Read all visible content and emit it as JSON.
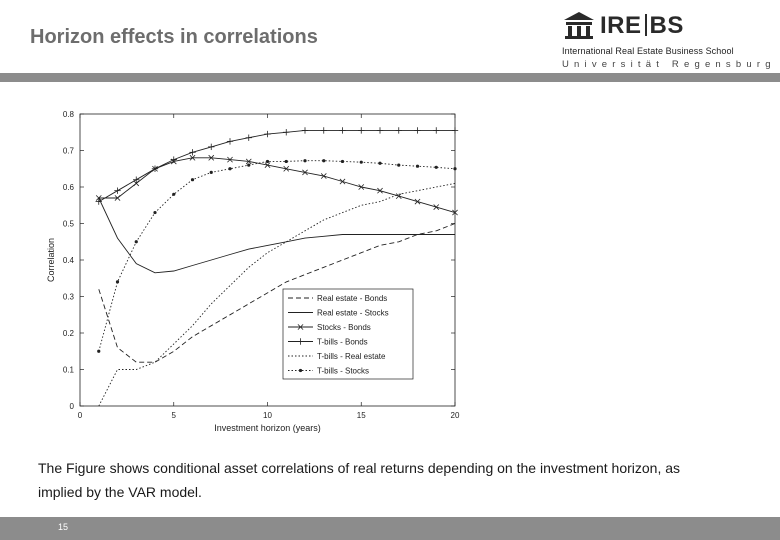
{
  "slide": {
    "title": "Horizon effects in correlations",
    "caption": "The Figure shows conditional asset correlations of real returns depending on the investment horizon, as implied by the VAR model.",
    "page_number": "15"
  },
  "logo": {
    "name_left": "IRE",
    "name_right": "BS",
    "subtitle": "International Real Estate Business School",
    "university": "Universität Regensburg"
  },
  "colors": {
    "bar": "#8c8c8c",
    "title": "#6d6d6d",
    "ink": "#1a1a1a"
  },
  "chart_data": {
    "type": "line",
    "title": "",
    "xlabel": "Investment horizon (years)",
    "ylabel": "Correlation",
    "xlim": [
      0,
      20
    ],
    "ylim": [
      0,
      0.8
    ],
    "xticks": [
      0,
      5,
      10,
      15,
      20
    ],
    "yticks": [
      0,
      0.1,
      0.2,
      0.3,
      0.4,
      0.5,
      0.6,
      0.7,
      0.8
    ],
    "legend_position": "bottom-right",
    "grid": false,
    "x": [
      1,
      2,
      3,
      4,
      5,
      6,
      7,
      8,
      9,
      10,
      11,
      12,
      13,
      14,
      15,
      16,
      17,
      18,
      19,
      20
    ],
    "series": [
      {
        "name": "Real estate - Bonds",
        "style": "dashed",
        "marker": "none",
        "values": [
          0.32,
          0.16,
          0.12,
          0.12,
          0.15,
          0.19,
          0.22,
          0.25,
          0.28,
          0.31,
          0.34,
          0.36,
          0.38,
          0.4,
          0.42,
          0.44,
          0.45,
          0.47,
          0.48,
          0.5
        ]
      },
      {
        "name": "Real estate - Stocks",
        "style": "solid",
        "marker": "none",
        "values": [
          0.57,
          0.46,
          0.39,
          0.365,
          0.37,
          0.385,
          0.4,
          0.415,
          0.43,
          0.44,
          0.45,
          0.46,
          0.465,
          0.47,
          0.47,
          0.47,
          0.47,
          0.47,
          0.47,
          0.47
        ]
      },
      {
        "name": "Stocks - Bonds",
        "style": "solid",
        "marker": "x",
        "values": [
          0.57,
          0.57,
          0.61,
          0.65,
          0.67,
          0.68,
          0.68,
          0.675,
          0.67,
          0.66,
          0.65,
          0.64,
          0.63,
          0.615,
          0.6,
          0.59,
          0.575,
          0.56,
          0.545,
          0.53
        ]
      },
      {
        "name": "T-bills - Bonds",
        "style": "solid",
        "marker": "+",
        "values": [
          0.56,
          0.59,
          0.62,
          0.65,
          0.675,
          0.695,
          0.71,
          0.725,
          0.735,
          0.745,
          0.75,
          0.755,
          0.755,
          0.755,
          0.755,
          0.755,
          0.755,
          0.755,
          0.755,
          0.755
        ]
      },
      {
        "name": "T-bills - Real estate",
        "style": "dotted",
        "marker": "none",
        "values": [
          0.0,
          0.1,
          0.1,
          0.12,
          0.17,
          0.22,
          0.28,
          0.33,
          0.38,
          0.42,
          0.45,
          0.48,
          0.51,
          0.53,
          0.55,
          0.56,
          0.58,
          0.59,
          0.6,
          0.61
        ]
      },
      {
        "name": "T-bills - Stocks",
        "style": "dotted",
        "marker": "dot",
        "values": [
          0.15,
          0.34,
          0.45,
          0.53,
          0.58,
          0.62,
          0.64,
          0.65,
          0.66,
          0.67,
          0.67,
          0.672,
          0.672,
          0.67,
          0.668,
          0.665,
          0.66,
          0.657,
          0.654,
          0.65
        ]
      }
    ]
  }
}
